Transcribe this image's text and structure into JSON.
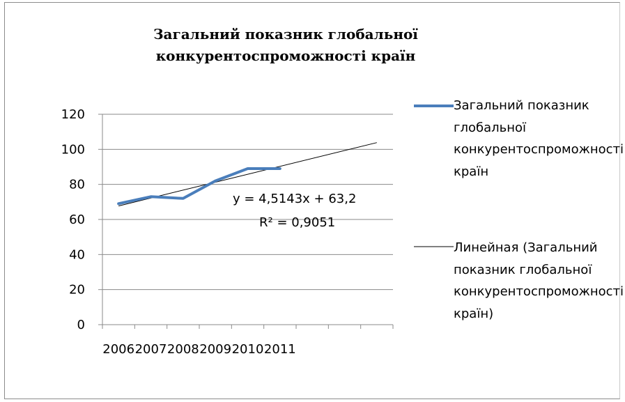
{
  "chart_data": {
    "type": "line",
    "title": "Загальний показник глобальної конкурентоспроможності країн",
    "categories": [
      "2006",
      "2007",
      "2008",
      "2009",
      "2010",
      "2011"
    ],
    "series": [
      {
        "name": "Загальний показник глобальної конкурентоспроможності країн",
        "values": [
          69,
          73,
          72,
          82,
          89,
          89
        ],
        "color": "#4a7ebb"
      }
    ],
    "trendline": {
      "name": "Линейная (Загальний показник глобальної конкурентоспроможності країн)",
      "slope": 4.5143,
      "intercept": 63.2,
      "equation": "y = 4,5143x + 63,2",
      "r_squared": "R² = 0,9051",
      "color": "#000000"
    },
    "ylim": [
      0,
      120
    ],
    "yticks": [
      "0",
      "20",
      "40",
      "60",
      "80",
      "100",
      "120"
    ],
    "grid": true,
    "legend_position": "right"
  }
}
